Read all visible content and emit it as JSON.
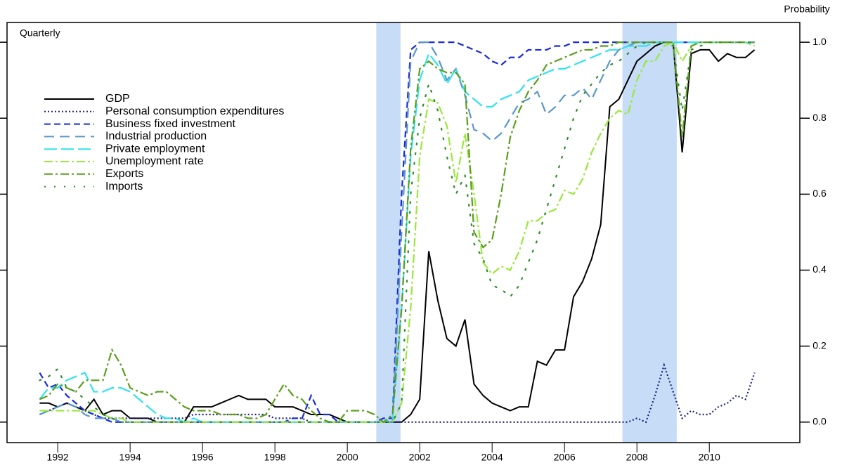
{
  "chart_data": {
    "type": "line",
    "subtitle": "Quarterly",
    "y_label": "Probability",
    "xlim": [
      1990.6,
      2012.5
    ],
    "ylim": [
      -0.054,
      1.052
    ],
    "xticks": [
      1992,
      1994,
      1996,
      1998,
      2000,
      2002,
      2004,
      2006,
      2008,
      2010
    ],
    "yticks": [
      {
        "value": 0,
        "label": "0.0"
      },
      {
        "value": 0.2,
        "label": "0.2"
      },
      {
        "value": 0.4,
        "label": "0.4"
      },
      {
        "value": 0.6,
        "label": "0.6"
      },
      {
        "value": 0.8,
        "label": "0.8"
      },
      {
        "value": 1,
        "label": "1.0"
      }
    ],
    "shaded_spans": [
      [
        2000.8,
        2001.47
      ],
      [
        2007.6,
        2009.1
      ]
    ],
    "shade_color": "#c6dcf7",
    "legend": "upper left",
    "x": [
      1991.5,
      1991.75,
      1992,
      1992.25,
      1992.5,
      1992.75,
      1993,
      1993.25,
      1993.5,
      1993.75,
      1994,
      1994.25,
      1994.5,
      1994.75,
      1995,
      1995.25,
      1995.5,
      1995.75,
      1996,
      1996.25,
      1996.5,
      1996.75,
      1997,
      1997.25,
      1997.5,
      1997.75,
      1998,
      1998.25,
      1998.5,
      1998.75,
      1999,
      1999.25,
      1999.5,
      1999.75,
      2000,
      2000.25,
      2000.5,
      2000.75,
      2001,
      2001.25,
      2001.5,
      2001.75,
      2002,
      2002.25,
      2002.5,
      2002.75,
      2003,
      2003.25,
      2003.5,
      2003.75,
      2004,
      2004.25,
      2004.5,
      2004.75,
      2005,
      2005.25,
      2005.5,
      2005.75,
      2006,
      2006.25,
      2006.5,
      2006.75,
      2007,
      2007.25,
      2007.5,
      2007.75,
      2008,
      2008.25,
      2008.5,
      2008.75,
      2009,
      2009.25,
      2009.5,
      2009.75,
      2010,
      2010.25,
      2010.5,
      2010.75,
      2011,
      2011.25
    ],
    "series": [
      {
        "name": "GDP",
        "color": "#000000",
        "dash": "none",
        "values": [
          0.05,
          0.05,
          0.04,
          0.05,
          0.04,
          0.03,
          0.06,
          0.02,
          0.03,
          0.03,
          0.01,
          0.01,
          0.01,
          0,
          0,
          0,
          0,
          0.04,
          0.04,
          0.04,
          0.05,
          0.06,
          0.07,
          0.06,
          0.06,
          0.06,
          0.04,
          0.04,
          0.04,
          0.03,
          0.02,
          0.02,
          0.02,
          0.01,
          0,
          0,
          0,
          0,
          0,
          0,
          0,
          0.02,
          0.06,
          0.45,
          0.32,
          0.22,
          0.2,
          0.27,
          0.1,
          0.07,
          0.05,
          0.04,
          0.03,
          0.04,
          0.04,
          0.16,
          0.15,
          0.19,
          0.19,
          0.33,
          0.37,
          0.43,
          0.52,
          0.83,
          0.85,
          0.9,
          0.95,
          0.97,
          0.99,
          1,
          1,
          0.71,
          0.97,
          0.98,
          0.98,
          0.95,
          0.97,
          0.96,
          0.96,
          0.98
        ]
      },
      {
        "name": "Personal consumption expenditures",
        "color": "#1f1f7a",
        "dash": "2,3",
        "values": [
          0.02,
          0.03,
          0.04,
          0.05,
          0.04,
          0.03,
          0.02,
          0.01,
          0.01,
          0.01,
          0.01,
          0.01,
          0.01,
          0.01,
          0.01,
          0.01,
          0.01,
          0.02,
          0.02,
          0.02,
          0.02,
          0.02,
          0.02,
          0.02,
          0.02,
          0.02,
          0.01,
          0.01,
          0.01,
          0.01,
          0,
          0,
          0,
          0,
          0,
          0,
          0,
          0,
          0,
          0,
          0,
          0,
          0,
          0,
          0,
          0,
          0,
          0,
          0,
          0,
          0,
          0,
          0,
          0,
          0,
          0,
          0,
          0,
          0,
          0,
          0,
          0,
          0,
          0,
          0,
          0,
          0.01,
          0,
          0.07,
          0.15,
          0.08,
          0.01,
          0.03,
          0.02,
          0.02,
          0.04,
          0.05,
          0.07,
          0.06,
          0.13
        ]
      },
      {
        "name": "Business fixed investment",
        "color": "#1a2bdc",
        "dash": "9,5",
        "values": [
          0.13,
          0.09,
          0.1,
          0.07,
          0.05,
          0.03,
          0.02,
          0.01,
          0,
          0,
          0,
          0,
          0,
          0,
          0,
          0,
          0,
          0,
          0,
          0,
          0,
          0,
          0,
          0,
          0,
          0,
          0,
          0,
          0.01,
          0.01,
          0.07,
          0.02,
          0.02,
          0,
          0,
          0,
          0,
          0,
          0.01,
          0.01,
          0.6,
          0.98,
          1,
          1,
          1,
          1,
          1,
          0.99,
          0.98,
          0.97,
          0.95,
          0.94,
          0.96,
          0.96,
          0.98,
          0.98,
          0.98,
          0.99,
          0.99,
          1,
          1,
          1,
          1,
          1,
          1,
          1,
          1,
          1,
          1,
          1,
          1,
          1,
          1,
          1,
          1,
          1,
          1,
          1,
          1,
          1
        ]
      },
      {
        "name": "Industrial production",
        "color": "#5a97c8",
        "dash": "14,8",
        "values": [
          0.02,
          0.03,
          0.04,
          0.05,
          0.04,
          0.02,
          0.01,
          0.01,
          0.01,
          0,
          0,
          0,
          0,
          0,
          0,
          0,
          0,
          0,
          0,
          0,
          0,
          0,
          0,
          0,
          0,
          0,
          0,
          0,
          0,
          0,
          0,
          0,
          0,
          0,
          0,
          0,
          0,
          0,
          0,
          0,
          0.5,
          0.95,
          1,
          1,
          0.96,
          0.9,
          0.93,
          0.86,
          0.77,
          0.76,
          0.74,
          0.76,
          0.8,
          0.84,
          0.85,
          0.87,
          0.81,
          0.83,
          0.86,
          0.86,
          0.88,
          0.85,
          0.9,
          0.95,
          0.98,
          0.99,
          1,
          1,
          1,
          1,
          1,
          1,
          1,
          1,
          1,
          1,
          1,
          1,
          1,
          1
        ]
      },
      {
        "name": "Private employment",
        "color": "#2fe3ee",
        "dash": "18,6",
        "values": [
          0.06,
          0.09,
          0.09,
          0.11,
          0.12,
          0.13,
          0.08,
          0.08,
          0.09,
          0.09,
          0.08,
          0.06,
          0.04,
          0.02,
          0.01,
          0.01,
          0,
          0.01,
          0,
          0,
          0,
          0,
          0,
          0,
          0,
          0,
          0,
          0,
          0,
          0,
          0,
          0,
          0,
          0,
          0,
          0,
          0,
          0,
          0,
          0.01,
          0.3,
          0.7,
          0.9,
          0.97,
          0.94,
          0.89,
          0.93,
          0.87,
          0.85,
          0.83,
          0.83,
          0.85,
          0.86,
          0.87,
          0.9,
          0.91,
          0.92,
          0.93,
          0.93,
          0.94,
          0.95,
          0.96,
          0.97,
          0.98,
          0.98,
          0.99,
          0.99,
          0.99,
          1,
          1,
          1,
          1,
          1,
          1,
          1,
          1,
          1,
          1,
          1,
          0.99
        ]
      },
      {
        "name": "Unemployment rate",
        "color": "#9ae83a",
        "dash": "12,4,3,4",
        "values": [
          0.03,
          0.03,
          0.03,
          0.03,
          0.03,
          0.03,
          0.03,
          0.02,
          0.01,
          0.01,
          0,
          0,
          0,
          0,
          0,
          0,
          0,
          0,
          0,
          0,
          0,
          0,
          0,
          0,
          0,
          0,
          0,
          0,
          0,
          0,
          0,
          0,
          0,
          0,
          0,
          0,
          0,
          0,
          0,
          0,
          0.05,
          0.3,
          0.7,
          0.85,
          0.84,
          0.78,
          0.63,
          0.76,
          0.6,
          0.42,
          0.39,
          0.41,
          0.4,
          0.45,
          0.53,
          0.53,
          0.55,
          0.56,
          0.61,
          0.6,
          0.64,
          0.71,
          0.76,
          0.8,
          0.82,
          0.81,
          0.9,
          0.95,
          0.95,
          0.99,
          1,
          0.95,
          0.99,
          1,
          1,
          1,
          1,
          1,
          1,
          0.99
        ]
      },
      {
        "name": "Exports",
        "color": "#5a9e1a",
        "dash": "12,4,3,4",
        "values": [
          0.06,
          0.07,
          0.1,
          0.09,
          0.08,
          0.11,
          0.11,
          0.11,
          0.19,
          0.15,
          0.09,
          0.08,
          0.07,
          0.08,
          0.08,
          0.06,
          0.04,
          0.03,
          0.03,
          0.03,
          0.02,
          0.02,
          0.02,
          0.01,
          0.01,
          0.02,
          0.06,
          0.1,
          0.07,
          0.06,
          0.03,
          0.01,
          0,
          0,
          0.03,
          0.03,
          0.03,
          0.02,
          0,
          0.02,
          0.3,
          0.72,
          0.93,
          0.95,
          0.93,
          0.92,
          0.92,
          0.89,
          0.5,
          0.46,
          0.48,
          0.6,
          0.75,
          0.82,
          0.87,
          0.9,
          0.94,
          0.95,
          0.96,
          0.97,
          0.98,
          0.98,
          0.99,
          0.99,
          1,
          1,
          1,
          1,
          1,
          1,
          1,
          0.75,
          0.99,
          1,
          1,
          1,
          1,
          1,
          1,
          1
        ]
      },
      {
        "name": "Imports",
        "color": "#2e8b2e",
        "dash": "2,12",
        "values": [
          0.11,
          0.12,
          0.14,
          0.09,
          0.08,
          0.06,
          0.04,
          0.02,
          0.01,
          0,
          0,
          0,
          0,
          0,
          0,
          0,
          0,
          0,
          0,
          0,
          0,
          0,
          0,
          0,
          0,
          0,
          0,
          0,
          0,
          0,
          0,
          0,
          0,
          0,
          0,
          0,
          0,
          0,
          0,
          0,
          0.05,
          0.6,
          0.8,
          0.89,
          0.82,
          0.7,
          0.6,
          0.65,
          0.47,
          0.43,
          0.36,
          0.35,
          0.33,
          0.36,
          0.42,
          0.48,
          0.56,
          0.64,
          0.72,
          0.8,
          0.86,
          0.89,
          0.92,
          0.94,
          0.95,
          0.97,
          0.99,
          1,
          1,
          1,
          0.99,
          0.82,
          0.98,
          0.99,
          1,
          1,
          1,
          1,
          1,
          1
        ]
      }
    ]
  }
}
